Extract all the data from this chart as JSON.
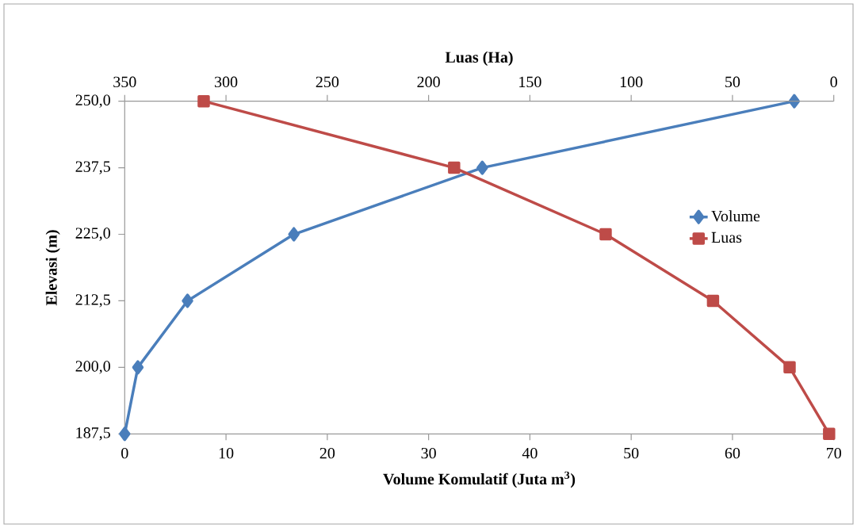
{
  "chart_data": {
    "type": "line",
    "xlabel": "Volume Komulatif (Juta m$^{3}$)",
    "ylabel": "Elevasi (m)",
    "x2label": "Luas (Ha)",
    "xlim": [
      0,
      70
    ],
    "xticks": [
      0,
      10,
      20,
      30,
      40,
      50,
      60,
      70
    ],
    "x2lim": [
      350,
      0
    ],
    "x2ticks": [
      350,
      300,
      250,
      200,
      150,
      100,
      50,
      0
    ],
    "ylim": [
      187.5,
      250
    ],
    "yticks": [
      {
        "value": 187.5,
        "label": "187,5"
      },
      {
        "value": 200,
        "label": "200,0"
      },
      {
        "value": 212.5,
        "label": "212,5"
      },
      {
        "value": 225,
        "label": "225,0"
      },
      {
        "value": 237.5,
        "label": "237,5"
      },
      {
        "value": 250,
        "label": "250,0"
      }
    ],
    "grid": false,
    "legend": "right",
    "series": [
      {
        "name": "Volume",
        "color": "#4a7ebb",
        "marker": "diamond",
        "x": [
          0,
          1.3,
          6.2,
          16.7,
          35.3,
          66.1
        ],
        "values": [
          187.5,
          200,
          212.5,
          225,
          237.5,
          250
        ]
      },
      {
        "name": "Luas",
        "color": "#be4b48",
        "marker": "square",
        "axis": "x2",
        "x": [
          2.3,
          21.8,
          59.6,
          112.6,
          187.4,
          311
        ],
        "values": [
          187.5,
          200,
          212.5,
          225,
          237.5,
          250
        ]
      }
    ]
  }
}
